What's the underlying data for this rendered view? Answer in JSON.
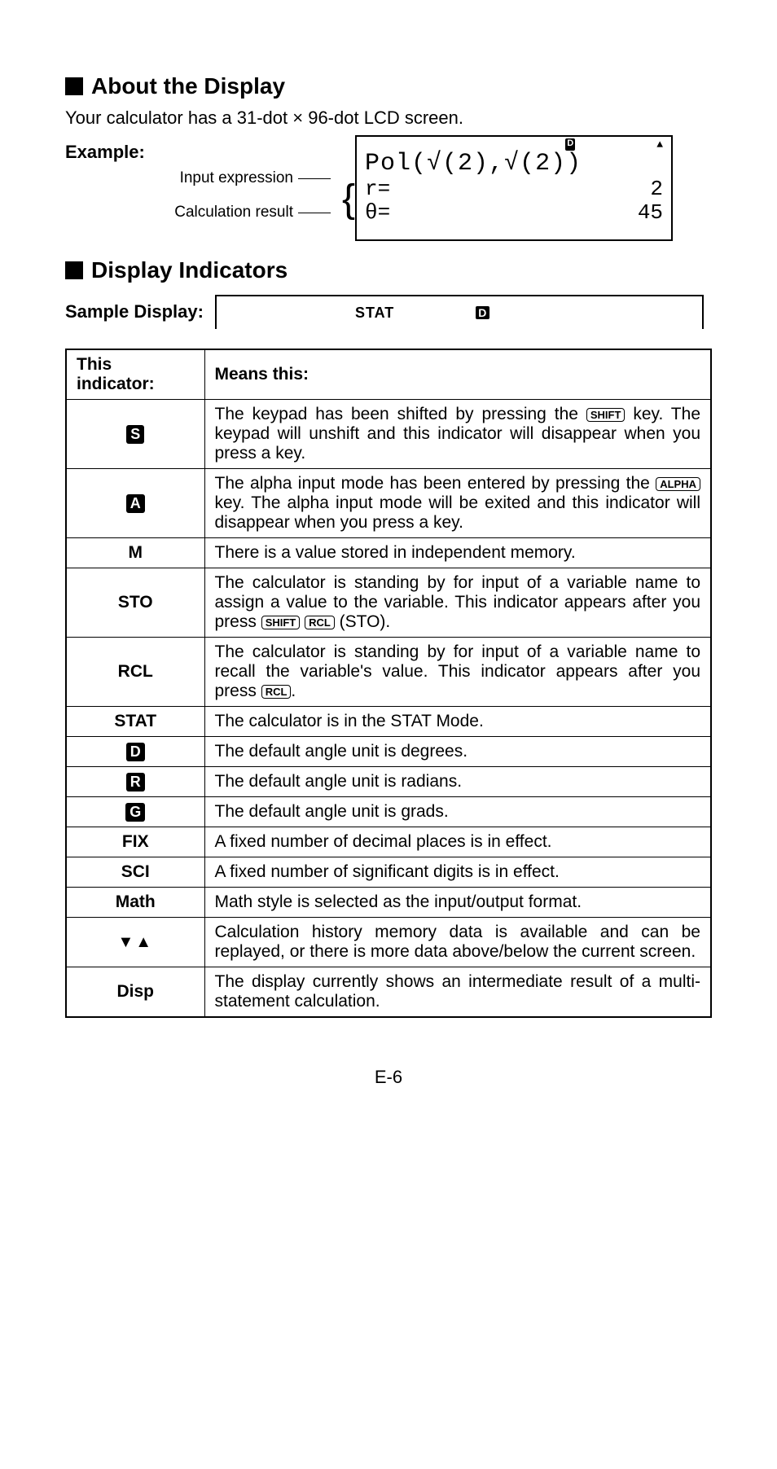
{
  "section1": {
    "title": "About the Display",
    "intro": "Your calculator has a 31-dot × 96-dot LCD screen.",
    "example_label": "Example:",
    "input_expr_label": "Input expression",
    "calc_result_label": "Calculation result",
    "lcd": {
      "top_d": "D",
      "top_arrow": "▲",
      "line1": "Pol(√(2),√(2))",
      "r_label": "r=",
      "theta_label": "θ=",
      "r_val": "2",
      "theta_val": "45"
    }
  },
  "section2": {
    "title": "Display Indicators",
    "sample_label": "Sample Display:",
    "sample_lcd": {
      "stat": "STAT",
      "d": "D"
    }
  },
  "table": {
    "head": {
      "c1a": "This",
      "c1b": "indicator:",
      "c2": "Means this:"
    },
    "rows": [
      {
        "ind_type": "badge",
        "ind": "S",
        "desc_parts": [
          "The keypad has been shifted by pressing the ",
          {
            "key": "SHIFT"
          },
          " key. The keypad will unshift and this indicator will disappear when you press a key."
        ]
      },
      {
        "ind_type": "badge",
        "ind": "A",
        "desc_parts": [
          "The alpha input mode has been entered by pressing the ",
          {
            "key": "ALPHA"
          },
          " key. The alpha input mode will be exited and this indicator will disappear when you press a key."
        ]
      },
      {
        "ind_type": "bold",
        "ind": "M",
        "desc_parts": [
          "There is a value stored in independent memory."
        ]
      },
      {
        "ind_type": "bold",
        "ind": "STO",
        "desc_parts": [
          "The calculator is standing by for input of a variable name to assign a value to the variable. This indicator appears after you press ",
          {
            "key": "SHIFT"
          },
          " ",
          {
            "key": "RCL"
          },
          " (STO)."
        ]
      },
      {
        "ind_type": "bold",
        "ind": "RCL",
        "desc_parts": [
          "The calculator is standing by for input of a variable name to recall the variable's value. This indicator appears after you press ",
          {
            "key": "RCL"
          },
          "."
        ]
      },
      {
        "ind_type": "bold",
        "ind": "STAT",
        "desc_parts": [
          "The calculator is in the STAT Mode."
        ]
      },
      {
        "ind_type": "badge",
        "ind": "D",
        "desc_parts": [
          "The default angle unit is degrees."
        ]
      },
      {
        "ind_type": "badge",
        "ind": "R",
        "desc_parts": [
          "The default angle unit is radians."
        ]
      },
      {
        "ind_type": "badge",
        "ind": "G",
        "desc_parts": [
          "The default angle unit is grads."
        ]
      },
      {
        "ind_type": "bold",
        "ind": "FIX",
        "desc_parts": [
          "A fixed number of decimal places is in effect."
        ]
      },
      {
        "ind_type": "bold",
        "ind": "SCI",
        "desc_parts": [
          "A fixed number of significant digits is in effect."
        ]
      },
      {
        "ind_type": "bold",
        "ind": "Math",
        "desc_parts": [
          "Math style is selected as the input/output format."
        ]
      },
      {
        "ind_type": "tri",
        "ind": "▼▲",
        "desc_parts": [
          "Calculation history memory data is available and can be replayed, or there is more data above/below the current screen."
        ]
      },
      {
        "ind_type": "bold",
        "ind": "Disp",
        "desc_parts": [
          "The display currently shows an intermediate result of a multi-statement calculation."
        ]
      }
    ]
  },
  "page_number": "E-6",
  "colors": {
    "text": "#000000",
    "bg": "#ffffff"
  },
  "typography": {
    "body_fontsize": 22,
    "heading_fontsize": 28,
    "table_fontsize": 21
  }
}
